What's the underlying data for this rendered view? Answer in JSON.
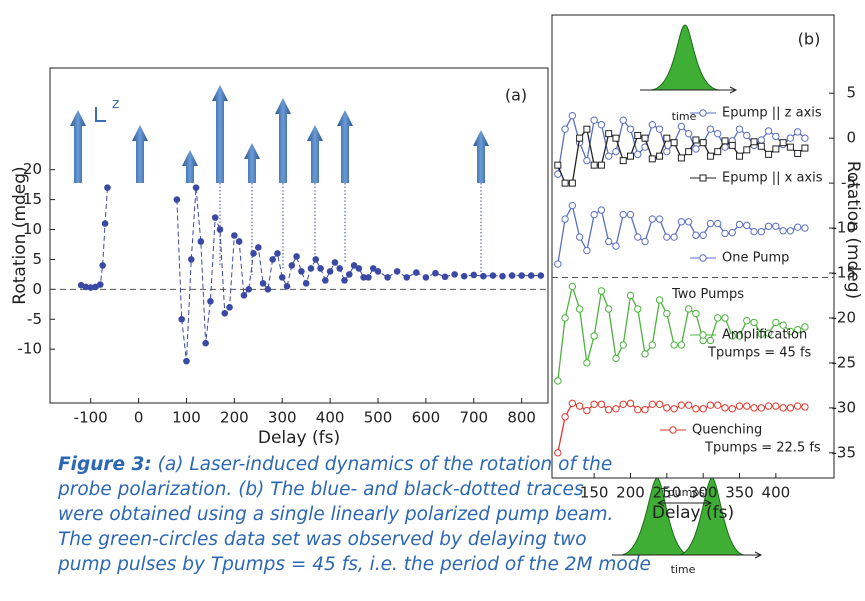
{
  "chart_data": [
    {
      "type": "scatter",
      "panel_label": "(a)",
      "axis_icon_label": "z",
      "xlabel": "Delay (fs)",
      "ylabel": "Rotation (mdeg)",
      "xlim": [
        -185,
        855
      ],
      "ylim": [
        -19,
        37
      ],
      "xticks": [
        -100,
        0,
        100,
        200,
        300,
        400,
        500,
        600,
        700,
        800
      ],
      "yticks": [
        -10,
        -5,
        0,
        5,
        10,
        15,
        20
      ],
      "hline": 0,
      "series": [
        {
          "color": "#3a48a6",
          "x": [
            -120,
            -110,
            -100,
            -90,
            -80,
            -75,
            -70,
            -65
          ],
          "values": [
            0.7,
            0.4,
            0.3,
            0.4,
            0.8,
            4,
            11,
            17
          ]
        },
        {
          "color": "#3a48a6",
          "x": [
            80,
            90,
            100,
            110,
            120,
            130,
            140,
            150,
            160,
            170,
            180,
            190,
            200,
            210,
            220,
            230,
            240,
            250,
            260,
            270,
            280,
            290,
            300,
            310,
            320,
            330,
            340,
            350,
            360,
            370,
            380,
            390,
            400,
            410,
            420,
            430,
            440,
            450,
            460,
            470,
            480,
            490,
            500,
            520,
            540,
            560,
            580,
            600,
            620,
            640,
            660,
            680,
            700,
            720,
            740,
            760,
            780,
            800,
            820,
            840
          ],
          "values": [
            15,
            -5,
            -12,
            5,
            17,
            8,
            -9,
            -2,
            12,
            10,
            -4,
            -3,
            9,
            8,
            -1,
            0,
            6,
            7,
            1,
            0,
            5,
            6,
            2,
            0.5,
            4,
            5.5,
            3,
            1,
            3.5,
            5,
            3.5,
            1.5,
            3,
            4.5,
            3.5,
            1.5,
            2.5,
            4,
            3.5,
            2,
            2,
            3.5,
            3,
            2,
            3,
            2,
            2.8,
            2,
            2.7,
            2.1,
            2.5,
            2.2,
            2.4,
            2.2,
            2.3,
            2.2,
            2.3,
            2.3,
            2.3,
            2.3
          ]
        }
      ]
    },
    {
      "type": "line",
      "panel_label": "(b)",
      "xlabel": "Delay (fs)",
      "ylabel": "Rotation (mdeg)",
      "xlim": [
        92,
        480
      ],
      "ylim": [
        -37.8,
        13.7
      ],
      "xticks": [
        150,
        200,
        250,
        300,
        350,
        400
      ],
      "yticks": [
        5,
        0,
        -5,
        -10,
        -15,
        -20,
        -25,
        -30,
        -35
      ],
      "hline": -15.5,
      "hline_label": "Two Pumps",
      "annotations": [
        "Tpumps = 45 fs",
        "Tpumps = 22.5 fs"
      ],
      "pulse_labels": [
        "time",
        "Tpumps",
        "time"
      ],
      "x": [
        100,
        110,
        120,
        130,
        140,
        150,
        160,
        170,
        180,
        190,
        200,
        210,
        220,
        230,
        240,
        250,
        260,
        270,
        280,
        290,
        300,
        310,
        320,
        330,
        340,
        350,
        360,
        370,
        380,
        390,
        400,
        410,
        420,
        430,
        440
      ],
      "series": [
        {
          "name": "Epump || z axis",
          "color": "#5b6fc4",
          "marker": "circle",
          "values": [
            -4,
            1,
            2.5,
            -0.5,
            -2.5,
            2,
            1.5,
            -2,
            -1.5,
            2,
            1,
            -1.8,
            -1,
            1.5,
            1,
            -1.5,
            -0.5,
            1.3,
            0.5,
            -1.2,
            -0.5,
            1,
            0.5,
            -1,
            -0.3,
            1,
            0.3,
            -0.8,
            -0.2,
            0.8,
            0.2,
            -0.7,
            0,
            0.7,
            0
          ]
        },
        {
          "name": "Epump || x axis",
          "color": "#222222",
          "marker": "square",
          "values": [
            -3,
            -5,
            -5,
            0,
            1,
            -3,
            -3,
            0.5,
            0,
            -2.5,
            -2,
            0.3,
            0,
            -2.3,
            -2,
            0,
            -0.5,
            -2.2,
            -1.5,
            -0.2,
            -0.5,
            -2,
            -1.5,
            -0.3,
            -0.8,
            -2,
            -1.3,
            -0.4,
            -0.9,
            -1.8,
            -1.2,
            -0.5,
            -1,
            -1.7,
            -1.1
          ]
        },
        {
          "name": "One Pump",
          "color": "#5b6fc4",
          "marker": "circle",
          "values": [
            -14,
            -9,
            -7.5,
            -11,
            -12.5,
            -8.5,
            -8,
            -11.5,
            -12,
            -8.5,
            -8.5,
            -11,
            -11.5,
            -9,
            -9,
            -11,
            -11,
            -9.3,
            -9.3,
            -10.8,
            -10.8,
            -9.5,
            -9.5,
            -10.6,
            -10.5,
            -9.6,
            -9.7,
            -10.4,
            -10.4,
            -9.8,
            -9.8,
            -10.3,
            -10.3,
            -9.9,
            -10
          ]
        },
        {
          "name": "Amplification",
          "color": "#4cb33c",
          "marker": "circle",
          "values": [
            -27,
            -20,
            -16.5,
            -19,
            -25,
            -22,
            -17,
            -19,
            -24.5,
            -23,
            -17.5,
            -19,
            -24,
            -23,
            -18,
            -19.5,
            -23,
            -23,
            -19,
            -19.5,
            -22.5,
            -22.5,
            -20,
            -20,
            -22,
            -22,
            -20.3,
            -20.5,
            -21.8,
            -21.7,
            -20.5,
            -20.8,
            -21.5,
            -21.3,
            -21
          ]
        },
        {
          "name": "Quenching",
          "color": "#e03a2e",
          "marker": "circle",
          "values": [
            -35,
            -31,
            -29.5,
            -29.8,
            -30.3,
            -29.6,
            -29.6,
            -30.2,
            -30.1,
            -29.6,
            -29.5,
            -30.2,
            -30.2,
            -29.6,
            -29.6,
            -30,
            -30.1,
            -29.7,
            -29.7,
            -30.1,
            -30.1,
            -29.7,
            -29.7,
            -30,
            -30.1,
            -29.8,
            -29.8,
            -30,
            -30,
            -29.8,
            -29.8,
            -30,
            -30,
            -29.8,
            -29.9
          ]
        }
      ]
    }
  ],
  "caption": {
    "label": "Figure 3:",
    "lines": [
      " (a) Laser-induced dynamics of the rotation of the",
      "probe polarization. (b) The blue- and black-dotted traces",
      "were obtained using a single linearly polarized pump beam.",
      "The green-circles data set was observed by delaying two",
      "pump pulses by Tpumps = 45 fs, i.e. the period of the 2M mode"
    ]
  }
}
